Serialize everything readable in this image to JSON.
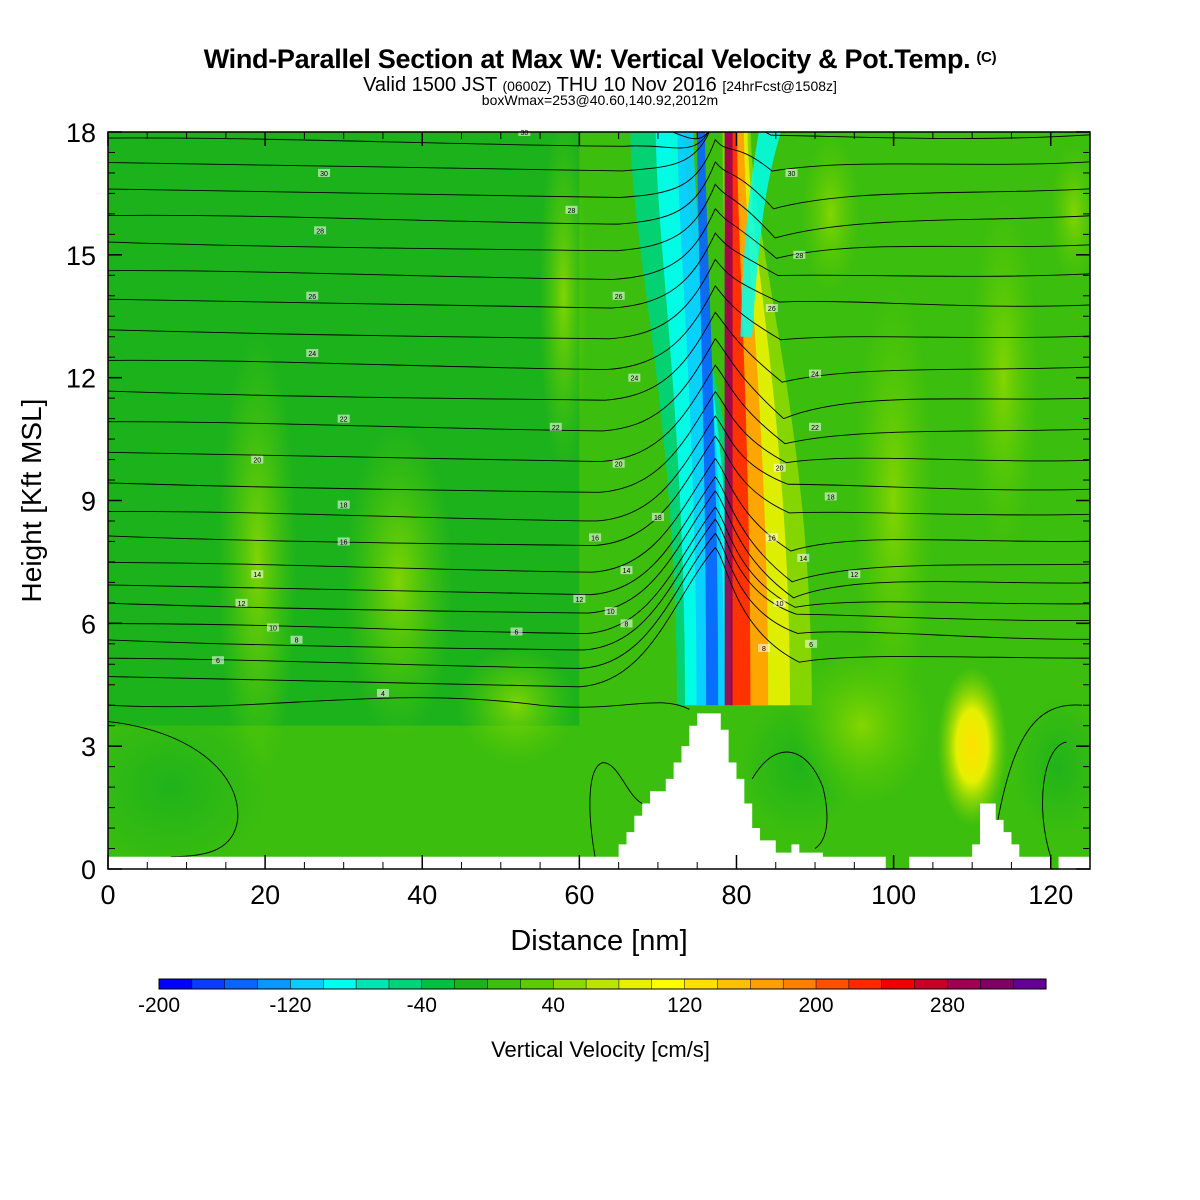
{
  "title": {
    "main": "Wind-Parallel Section at Max W: Vertical Velocity & Pot.Temp.",
    "copyright": "(C)",
    "valid_prefix": "Valid 1500 JST",
    "valid_utc": "(0600Z)",
    "valid_date": "THU 10 Nov 2016",
    "forecast": "[24hrFcst@1508z]",
    "box": "boxWmax=253@40.60,140.92,2012m"
  },
  "chart_data": {
    "type": "heatmap",
    "xlabel": "Distance [nm]",
    "ylabel": "Height [Kft MSL]",
    "xlim": [
      0,
      125
    ],
    "ylim": [
      0,
      18
    ],
    "x_ticks": [
      0,
      20,
      40,
      60,
      80,
      100,
      120
    ],
    "y_ticks": [
      0,
      3,
      6,
      9,
      12,
      15,
      18
    ],
    "colorbar": {
      "label": "Vertical Velocity [cm/s]",
      "min": -200,
      "max": 340,
      "step": 20,
      "tick_labels": [
        "-200",
        "-120",
        "-40",
        "40",
        "120",
        "200",
        "280"
      ],
      "tick_values": [
        -200,
        -120,
        -40,
        40,
        120,
        200,
        280
      ],
      "colors": [
        "#0000ff",
        "#0a3bff",
        "#0a64ff",
        "#0a96ff",
        "#0acdff",
        "#00ffee",
        "#00e6b3",
        "#00d27a",
        "#00c040",
        "#1cb21c",
        "#3cbe0e",
        "#5acc00",
        "#8cd800",
        "#bce400",
        "#e6f000",
        "#ffff00",
        "#ffe000",
        "#ffc000",
        "#ffa000",
        "#ff8000",
        "#ff5000",
        "#ff2800",
        "#f00000",
        "#c80028",
        "#a00050",
        "#800064",
        "#640096"
      ]
    },
    "theta_contours": {
      "levels": [
        4,
        6,
        8,
        10,
        12,
        14,
        16,
        18,
        20,
        22,
        24,
        26,
        28,
        30
      ],
      "line_color": "#000000"
    },
    "contour_labels": [
      {
        "x": 27.5,
        "y": 17.0,
        "text": "30"
      },
      {
        "x": 27.0,
        "y": 15.6,
        "text": "28"
      },
      {
        "x": 26.0,
        "y": 14.0,
        "text": "26"
      },
      {
        "x": 26.0,
        "y": 12.6,
        "text": "24"
      },
      {
        "x": 30.0,
        "y": 11.0,
        "text": "22"
      },
      {
        "x": 19.0,
        "y": 10.0,
        "text": "20"
      },
      {
        "x": 30.0,
        "y": 8.9,
        "text": "18"
      },
      {
        "x": 30.0,
        "y": 8.0,
        "text": "16"
      },
      {
        "x": 19.0,
        "y": 7.2,
        "text": "14"
      },
      {
        "x": 17.0,
        "y": 6.5,
        "text": "12"
      },
      {
        "x": 21.0,
        "y": 5.9,
        "text": "10"
      },
      {
        "x": 24.0,
        "y": 5.6,
        "text": "8"
      },
      {
        "x": 14.0,
        "y": 5.1,
        "text": "6"
      },
      {
        "x": 35.0,
        "y": 4.3,
        "text": "4"
      },
      {
        "x": 53.0,
        "y": 18.0,
        "text": "30"
      },
      {
        "x": 59.0,
        "y": 16.1,
        "text": "28"
      },
      {
        "x": 65.0,
        "y": 14.0,
        "text": "26"
      },
      {
        "x": 67.0,
        "y": 12.0,
        "text": "24"
      },
      {
        "x": 57.0,
        "y": 10.8,
        "text": "22"
      },
      {
        "x": 65.0,
        "y": 9.9,
        "text": "20"
      },
      {
        "x": 70.0,
        "y": 8.6,
        "text": "18"
      },
      {
        "x": 62.0,
        "y": 8.1,
        "text": "16"
      },
      {
        "x": 66.0,
        "y": 7.3,
        "text": "14"
      },
      {
        "x": 60.0,
        "y": 6.6,
        "text": "12"
      },
      {
        "x": 64.0,
        "y": 6.3,
        "text": "10"
      },
      {
        "x": 66.0,
        "y": 6.0,
        "text": "8"
      },
      {
        "x": 52.0,
        "y": 5.8,
        "text": "6"
      },
      {
        "x": 87.0,
        "y": 17.0,
        "text": "30"
      },
      {
        "x": 88.0,
        "y": 15.0,
        "text": "28"
      },
      {
        "x": 84.5,
        "y": 13.7,
        "text": "26"
      },
      {
        "x": 90.0,
        "y": 12.1,
        "text": "24"
      },
      {
        "x": 90.0,
        "y": 10.8,
        "text": "22"
      },
      {
        "x": 85.5,
        "y": 9.8,
        "text": "20"
      },
      {
        "x": 92.0,
        "y": 9.1,
        "text": "18"
      },
      {
        "x": 84.5,
        "y": 8.1,
        "text": "16"
      },
      {
        "x": 88.5,
        "y": 7.6,
        "text": "14"
      },
      {
        "x": 95.0,
        "y": 7.2,
        "text": "12"
      },
      {
        "x": 85.5,
        "y": 6.5,
        "text": "10"
      },
      {
        "x": 83.5,
        "y": 5.4,
        "text": "8"
      },
      {
        "x": 89.5,
        "y": 5.5,
        "text": "6"
      }
    ],
    "terrain_profile": [
      [
        0,
        0.3
      ],
      [
        65,
        0.3
      ],
      [
        65,
        0.6
      ],
      [
        66,
        0.6
      ],
      [
        66,
        0.9
      ],
      [
        67,
        0.9
      ],
      [
        67,
        1.3
      ],
      [
        68,
        1.3
      ],
      [
        68,
        1.6
      ],
      [
        69,
        1.6
      ],
      [
        69,
        1.9
      ],
      [
        71,
        1.9
      ],
      [
        71,
        2.2
      ],
      [
        72,
        2.2
      ],
      [
        72,
        2.6
      ],
      [
        73,
        2.6
      ],
      [
        73,
        3.0
      ],
      [
        74,
        3.0
      ],
      [
        74,
        3.5
      ],
      [
        75,
        3.5
      ],
      [
        75,
        3.8
      ],
      [
        78,
        3.8
      ],
      [
        78,
        3.4
      ],
      [
        79,
        3.4
      ],
      [
        79,
        2.6
      ],
      [
        80,
        2.6
      ],
      [
        80,
        2.2
      ],
      [
        81,
        2.2
      ],
      [
        81,
        1.6
      ],
      [
        82,
        1.6
      ],
      [
        82,
        1.0
      ],
      [
        83,
        1.0
      ],
      [
        83,
        0.7
      ],
      [
        85,
        0.7
      ],
      [
        85,
        0.4
      ],
      [
        87,
        0.4
      ],
      [
        87,
        0.6
      ],
      [
        88,
        0.6
      ],
      [
        88,
        0.4
      ],
      [
        91,
        0.4
      ],
      [
        91,
        0.3
      ],
      [
        99,
        0.3
      ],
      [
        99,
        0.0
      ],
      [
        102,
        0.0
      ],
      [
        102,
        0.3
      ],
      [
        110,
        0.3
      ],
      [
        110,
        0.6
      ],
      [
        111,
        0.6
      ],
      [
        111,
        1.6
      ],
      [
        113,
        1.6
      ],
      [
        113,
        1.2
      ],
      [
        114,
        1.2
      ],
      [
        114,
        0.9
      ],
      [
        115,
        0.9
      ],
      [
        115,
        0.6
      ],
      [
        116,
        0.6
      ],
      [
        116,
        0.3
      ],
      [
        120,
        0.3
      ],
      [
        120,
        0.0
      ],
      [
        121,
        0.0
      ],
      [
        121,
        0.3
      ],
      [
        125,
        0.3
      ]
    ]
  }
}
